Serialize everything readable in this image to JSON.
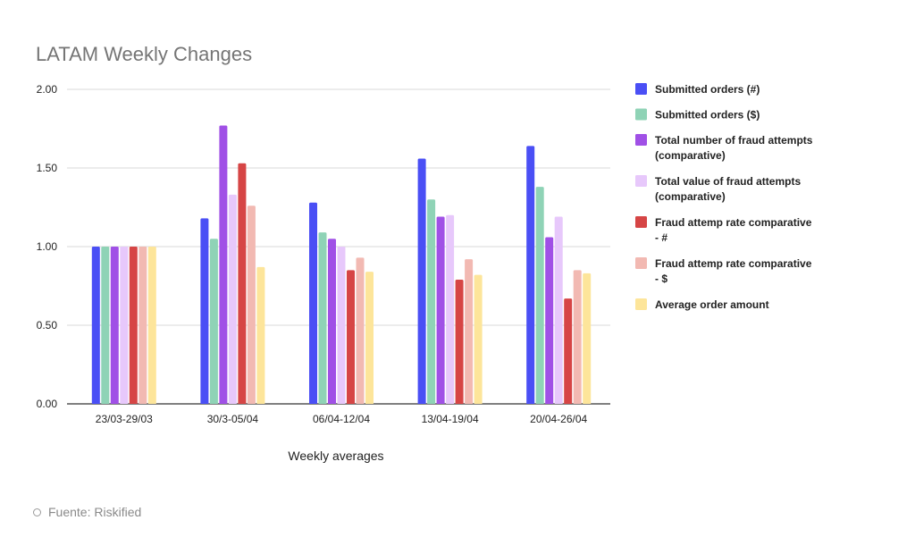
{
  "chart_data": {
    "type": "bar",
    "title": "LATAM Weekly Changes",
    "xlabel": "Weekly averages",
    "ylabel": "",
    "ylim": [
      0,
      2
    ],
    "yticks": [
      "0.00",
      "0.50",
      "1.00",
      "1.50",
      "2.00"
    ],
    "grid": true,
    "legend_position": "right",
    "categories": [
      "23/03-29/03",
      "30/3-05/04",
      "06/04-12/04",
      "13/04-19/04",
      "20/04-26/04"
    ],
    "series": [
      {
        "name": "Submitted orders (#)",
        "color": "#4a4ff5",
        "values": [
          1.0,
          1.18,
          1.28,
          1.56,
          1.64
        ]
      },
      {
        "name": "Submitted orders ($)",
        "color": "#8fd3b6",
        "values": [
          1.0,
          1.05,
          1.09,
          1.3,
          1.38
        ]
      },
      {
        "name": "Total number of fraud attempts (comparative)",
        "color": "#a050e6",
        "values": [
          1.0,
          1.77,
          1.05,
          1.19,
          1.06
        ]
      },
      {
        "name": "Total value of fraud attempts (comparative)",
        "color": "#e7c8fb",
        "values": [
          1.0,
          1.33,
          1.0,
          1.2,
          1.19
        ]
      },
      {
        "name": "Fraud attemp rate comparative - #",
        "color": "#d64545",
        "values": [
          1.0,
          1.53,
          0.85,
          0.79,
          0.67
        ]
      },
      {
        "name": "Fraud attemp rate comparative - $",
        "color": "#f2b9b2",
        "values": [
          1.0,
          1.26,
          0.93,
          0.92,
          0.85
        ]
      },
      {
        "name": "Average order amount",
        "color": "#fde59a",
        "values": [
          1.0,
          0.87,
          0.84,
          0.82,
          0.83
        ]
      }
    ]
  },
  "source": {
    "text": "Fuente: Riskified"
  }
}
